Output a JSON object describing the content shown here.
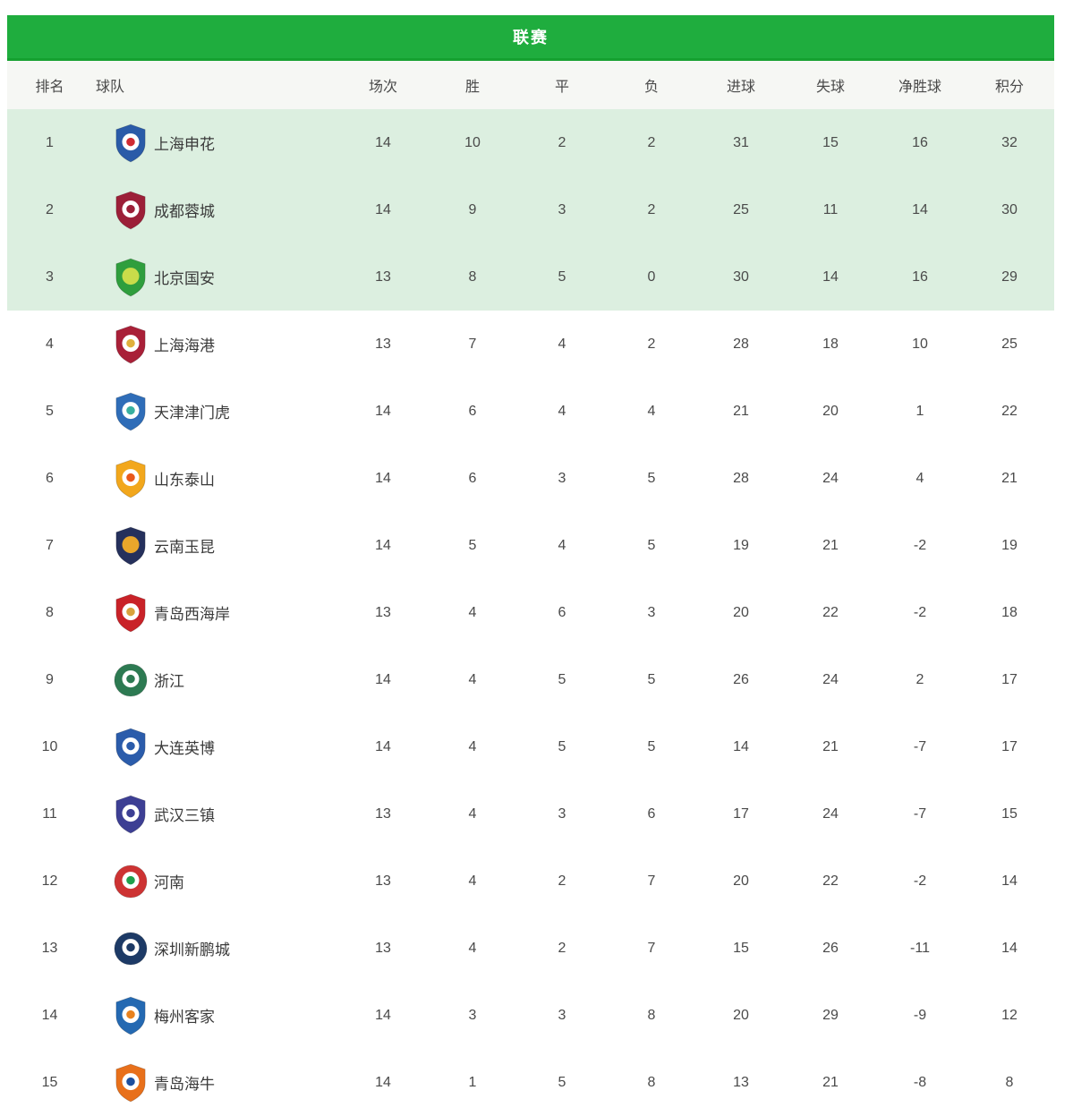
{
  "title_bar": {
    "label": "联赛"
  },
  "table": {
    "columns": [
      {
        "key": "rank",
        "label": "排名"
      },
      {
        "key": "name",
        "label": "球队"
      },
      {
        "key": "played",
        "label": "场次"
      },
      {
        "key": "wins",
        "label": "胜"
      },
      {
        "key": "draws",
        "label": "平"
      },
      {
        "key": "losses",
        "label": "负"
      },
      {
        "key": "goals_for",
        "label": "进球"
      },
      {
        "key": "goals_against",
        "label": "失球"
      },
      {
        "key": "goal_diff",
        "label": "净胜球"
      },
      {
        "key": "points",
        "label": "积分"
      }
    ],
    "teams": [
      {
        "rank": 1,
        "name": "上海申花",
        "played": 14,
        "wins": 10,
        "draws": 2,
        "losses": 2,
        "goals_for": 31,
        "goals_against": 15,
        "goal_diff": 16,
        "points": 32,
        "highlighted": true,
        "logo": {
          "icon": "shanghai-shenhua-badge",
          "shape": "shield",
          "colors": [
            "#2a5ba8",
            "#ffffff",
            "#cf2b33"
          ]
        }
      },
      {
        "rank": 2,
        "name": "成都蓉城",
        "played": 14,
        "wins": 9,
        "draws": 3,
        "losses": 2,
        "goals_for": 25,
        "goals_against": 11,
        "goal_diff": 14,
        "points": 30,
        "highlighted": true,
        "logo": {
          "icon": "chengdu-rongcheng-badge",
          "shape": "shield",
          "colors": [
            "#9c1f38",
            "#ffffff",
            "#9c1f38"
          ]
        }
      },
      {
        "rank": 3,
        "name": "北京国安",
        "played": 13,
        "wins": 8,
        "draws": 5,
        "losses": 0,
        "goals_for": 30,
        "goals_against": 14,
        "goal_diff": 16,
        "points": 29,
        "highlighted": true,
        "logo": {
          "icon": "beijing-guoan-badge",
          "shape": "shield",
          "colors": [
            "#2f9e3d",
            "#c9dc4a"
          ]
        }
      },
      {
        "rank": 4,
        "name": "上海海港",
        "played": 13,
        "wins": 7,
        "draws": 4,
        "losses": 2,
        "goals_for": 28,
        "goals_against": 18,
        "goal_diff": 10,
        "points": 25,
        "highlighted": false,
        "logo": {
          "icon": "shanghai-port-badge",
          "shape": "shield",
          "colors": [
            "#a92038",
            "#ffffff",
            "#e0b03c"
          ]
        }
      },
      {
        "rank": 5,
        "name": "天津津门虎",
        "played": 14,
        "wins": 6,
        "draws": 4,
        "losses": 4,
        "goals_for": 21,
        "goals_against": 20,
        "goal_diff": 1,
        "points": 22,
        "highlighted": false,
        "logo": {
          "icon": "tianjin-jinmen-tiger-badge",
          "shape": "shield",
          "colors": [
            "#2f6db8",
            "#ffffff",
            "#39b0a0"
          ]
        }
      },
      {
        "rank": 6,
        "name": "山东泰山",
        "played": 14,
        "wins": 6,
        "draws": 3,
        "losses": 5,
        "goals_for": 28,
        "goals_against": 24,
        "goal_diff": 4,
        "points": 21,
        "highlighted": false,
        "logo": {
          "icon": "shandong-taishan-badge",
          "shape": "shield",
          "colors": [
            "#f2a71c",
            "#ffffff",
            "#e9581b"
          ]
        }
      },
      {
        "rank": 7,
        "name": "云南玉昆",
        "played": 14,
        "wins": 5,
        "draws": 4,
        "losses": 5,
        "goals_for": 19,
        "goals_against": 21,
        "goal_diff": -2,
        "points": 19,
        "highlighted": false,
        "logo": {
          "icon": "yunnan-yukun-badge",
          "shape": "shield",
          "colors": [
            "#25305c",
            "#e9a62b"
          ]
        }
      },
      {
        "rank": 8,
        "name": "青岛西海岸",
        "played": 13,
        "wins": 4,
        "draws": 6,
        "losses": 3,
        "goals_for": 20,
        "goals_against": 22,
        "goal_diff": -2,
        "points": 18,
        "highlighted": false,
        "logo": {
          "icon": "qingdao-west-coast-badge",
          "shape": "shield",
          "colors": [
            "#c92228",
            "#ffffff",
            "#d9a23c"
          ]
        }
      },
      {
        "rank": 9,
        "name": "浙江",
        "played": 14,
        "wins": 4,
        "draws": 5,
        "losses": 5,
        "goals_for": 26,
        "goals_against": 24,
        "goal_diff": 2,
        "points": 17,
        "highlighted": false,
        "logo": {
          "icon": "zhejiang-badge",
          "shape": "circle",
          "colors": [
            "#2d7a52",
            "#ffffff",
            "#2d7a52"
          ]
        }
      },
      {
        "rank": 10,
        "name": "大连英博",
        "played": 14,
        "wins": 4,
        "draws": 5,
        "losses": 5,
        "goals_for": 14,
        "goals_against": 21,
        "goal_diff": -7,
        "points": 17,
        "highlighted": false,
        "logo": {
          "icon": "dalian-yingbo-badge",
          "shape": "shield",
          "colors": [
            "#2b5cab",
            "#ffffff",
            "#2b5cab"
          ]
        }
      },
      {
        "rank": 11,
        "name": "武汉三镇",
        "played": 13,
        "wins": 4,
        "draws": 3,
        "losses": 6,
        "goals_for": 17,
        "goals_against": 24,
        "goal_diff": -7,
        "points": 15,
        "highlighted": false,
        "logo": {
          "icon": "wuhan-three-towns-badge",
          "shape": "shield",
          "colors": [
            "#3d3f94",
            "#ffffff",
            "#3d3f94"
          ]
        }
      },
      {
        "rank": 12,
        "name": "河南",
        "played": 13,
        "wins": 4,
        "draws": 2,
        "losses": 7,
        "goals_for": 20,
        "goals_against": 22,
        "goal_diff": -2,
        "points": 14,
        "highlighted": false,
        "logo": {
          "icon": "henan-badge",
          "shape": "circle",
          "colors": [
            "#cd3333",
            "#ffffff",
            "#1fa04c"
          ]
        }
      },
      {
        "rank": 13,
        "name": "深圳新鹏城",
        "played": 13,
        "wins": 4,
        "draws": 2,
        "losses": 7,
        "goals_for": 15,
        "goals_against": 26,
        "goal_diff": -11,
        "points": 14,
        "highlighted": false,
        "logo": {
          "icon": "shenzhen-peng-city-badge",
          "shape": "circle",
          "colors": [
            "#1d3a66",
            "#ffffff",
            "#1d3a66"
          ]
        }
      },
      {
        "rank": 14,
        "name": "梅州客家",
        "played": 14,
        "wins": 3,
        "draws": 3,
        "losses": 8,
        "goals_for": 20,
        "goals_against": 29,
        "goal_diff": -9,
        "points": 12,
        "highlighted": false,
        "logo": {
          "icon": "meizhou-hakka-badge",
          "shape": "shield",
          "colors": [
            "#2469b2",
            "#ffffff",
            "#e8821f"
          ]
        }
      },
      {
        "rank": 15,
        "name": "青岛海牛",
        "played": 14,
        "wins": 1,
        "draws": 5,
        "losses": 8,
        "goals_for": 13,
        "goals_against": 21,
        "goal_diff": -8,
        "points": 8,
        "highlighted": false,
        "logo": {
          "icon": "qingdao-hainiu-badge",
          "shape": "shield",
          "colors": [
            "#e8701b",
            "#ffffff",
            "#1d4f9e"
          ]
        }
      }
    ]
  },
  "colors": {
    "title_bar_bg": "#1fad3e",
    "title_bar_border": "#15a030",
    "title_text": "#ffffff",
    "header_row_bg": "#f6f7f4",
    "highlight_row_bg": "#dcefe0",
    "row_bg": "#ffffff",
    "text_primary": "#3a3a3a",
    "text_secondary": "#4a4a4a"
  }
}
